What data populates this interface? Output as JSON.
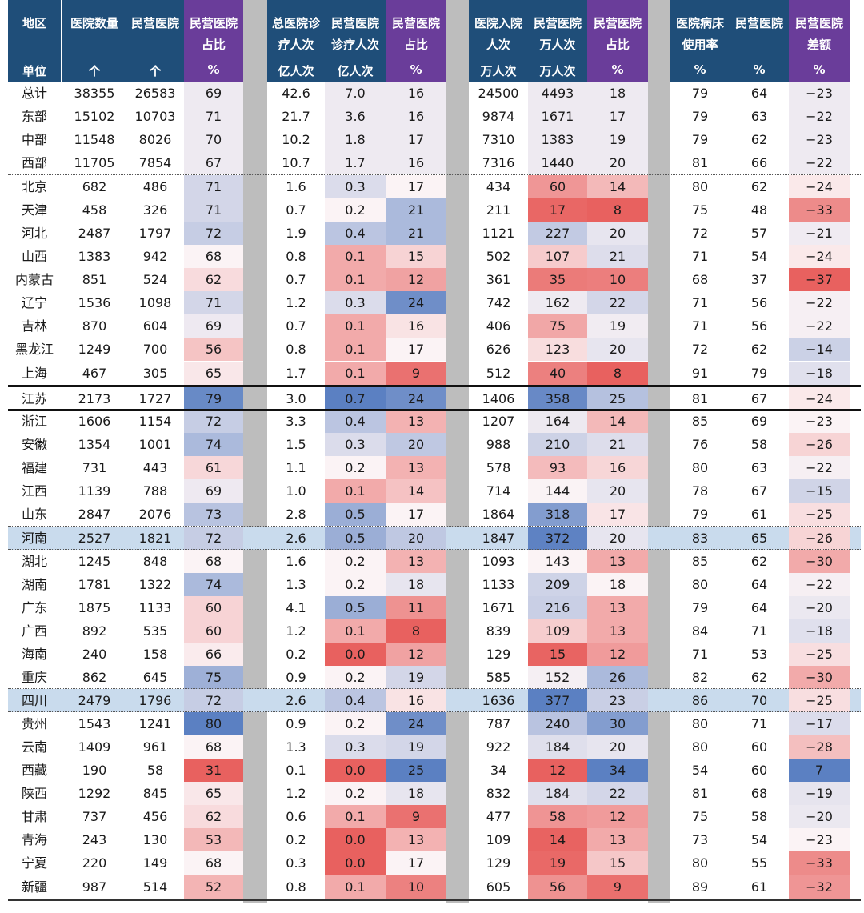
{
  "header": {
    "columns": [
      {
        "l1": "地区",
        "l2": "",
        "unit": "单位"
      },
      {
        "l1": "医院数量",
        "l2": "",
        "unit": "个"
      },
      {
        "l1": "民营医院",
        "l2": "",
        "unit": "个"
      },
      {
        "l1": "民营医院",
        "l2": "占比",
        "unit": "%"
      },
      {
        "l1": "总医院诊",
        "l2": "疗人次",
        "unit": "亿人次"
      },
      {
        "l1": "民营医院",
        "l2": "诊疗人次",
        "unit": "亿人次"
      },
      {
        "l1": "民营医院",
        "l2": "占比",
        "unit": "%"
      },
      {
        "l1": "医院入院",
        "l2": "人次",
        "unit": "万人次"
      },
      {
        "l1": "民营医院",
        "l2": "万人次",
        "unit": "万人次"
      },
      {
        "l1": "民营医院",
        "l2": "占比",
        "unit": "%"
      },
      {
        "l1": "医院病床",
        "l2": "使用率",
        "unit": "%"
      },
      {
        "l1": "民营医院",
        "l2": "",
        "unit": "%"
      },
      {
        "l1": "民营医院",
        "l2": "差额",
        "unit": "%"
      }
    ]
  },
  "rows": [
    {
      "region": "总计",
      "cells": [
        "38355",
        "26583",
        "69",
        "42.6",
        "7.0",
        "16",
        "24500",
        "4493",
        "18",
        "79",
        "64",
        "−23"
      ]
    },
    {
      "region": "东部",
      "cells": [
        "15102",
        "10703",
        "71",
        "21.7",
        "3.6",
        "16",
        "9874",
        "1671",
        "17",
        "79",
        "63",
        "−22"
      ]
    },
    {
      "region": "中部",
      "cells": [
        "11548",
        "8026",
        "70",
        "10.2",
        "1.8",
        "17",
        "7310",
        "1383",
        "19",
        "79",
        "62",
        "−23"
      ]
    },
    {
      "region": "西部",
      "cells": [
        "11705",
        "7854",
        "67",
        "10.7",
        "1.7",
        "16",
        "7316",
        "1440",
        "20",
        "81",
        "66",
        "−22"
      ]
    },
    {
      "region": "北京",
      "cells": [
        "682",
        "486",
        "71",
        "1.6",
        "0.3",
        "17",
        "434",
        "60",
        "14",
        "80",
        "62",
        "−24"
      ]
    },
    {
      "region": "天津",
      "cells": [
        "458",
        "326",
        "71",
        "0.7",
        "0.2",
        "21",
        "211",
        "17",
        "8",
        "75",
        "48",
        "−33"
      ]
    },
    {
      "region": "河北",
      "cells": [
        "2487",
        "1797",
        "72",
        "1.9",
        "0.4",
        "21",
        "1121",
        "227",
        "20",
        "72",
        "57",
        "−21"
      ]
    },
    {
      "region": "山西",
      "cells": [
        "1383",
        "942",
        "68",
        "0.8",
        "0.1",
        "15",
        "502",
        "107",
        "21",
        "71",
        "54",
        "−24"
      ]
    },
    {
      "region": "内蒙古",
      "cells": [
        "851",
        "524",
        "62",
        "0.7",
        "0.1",
        "12",
        "361",
        "35",
        "10",
        "68",
        "37",
        "−37"
      ]
    },
    {
      "region": "辽宁",
      "cells": [
        "1536",
        "1098",
        "71",
        "1.2",
        "0.3",
        "24",
        "742",
        "162",
        "22",
        "71",
        "56",
        "−22"
      ]
    },
    {
      "region": "吉林",
      "cells": [
        "870",
        "604",
        "69",
        "0.7",
        "0.1",
        "16",
        "406",
        "75",
        "19",
        "71",
        "56",
        "−22"
      ]
    },
    {
      "region": "黑龙江",
      "cells": [
        "1249",
        "700",
        "56",
        "0.8",
        "0.1",
        "17",
        "626",
        "123",
        "20",
        "72",
        "62",
        "−14"
      ]
    },
    {
      "region": "上海",
      "cells": [
        "467",
        "305",
        "65",
        "1.7",
        "0.1",
        "9",
        "512",
        "40",
        "8",
        "91",
        "79",
        "−18"
      ]
    },
    {
      "region": "江苏",
      "cells": [
        "2173",
        "1727",
        "79",
        "3.0",
        "0.7",
        "24",
        "1406",
        "358",
        "25",
        "81",
        "67",
        "−24"
      ]
    },
    {
      "region": "浙江",
      "cells": [
        "1606",
        "1154",
        "72",
        "3.3",
        "0.4",
        "13",
        "1207",
        "164",
        "14",
        "85",
        "69",
        "−23"
      ]
    },
    {
      "region": "安徽",
      "cells": [
        "1354",
        "1001",
        "74",
        "1.5",
        "0.3",
        "20",
        "988",
        "210",
        "21",
        "76",
        "58",
        "−26"
      ]
    },
    {
      "region": "福建",
      "cells": [
        "731",
        "443",
        "61",
        "1.1",
        "0.2",
        "13",
        "578",
        "93",
        "16",
        "80",
        "63",
        "−22"
      ]
    },
    {
      "region": "江西",
      "cells": [
        "1139",
        "788",
        "69",
        "1.0",
        "0.1",
        "14",
        "714",
        "144",
        "20",
        "78",
        "67",
        "−15"
      ]
    },
    {
      "region": "山东",
      "cells": [
        "2847",
        "2076",
        "73",
        "2.8",
        "0.5",
        "17",
        "1864",
        "318",
        "17",
        "79",
        "61",
        "−25"
      ]
    },
    {
      "region": "河南",
      "cells": [
        "2527",
        "1821",
        "72",
        "2.6",
        "0.5",
        "20",
        "1847",
        "372",
        "20",
        "83",
        "65",
        "−26"
      ]
    },
    {
      "region": "湖北",
      "cells": [
        "1245",
        "848",
        "68",
        "1.6",
        "0.2",
        "13",
        "1093",
        "143",
        "13",
        "85",
        "62",
        "−30"
      ]
    },
    {
      "region": "湖南",
      "cells": [
        "1781",
        "1322",
        "74",
        "1.3",
        "0.2",
        "18",
        "1133",
        "209",
        "18",
        "80",
        "64",
        "−22"
      ]
    },
    {
      "region": "广东",
      "cells": [
        "1875",
        "1133",
        "60",
        "4.1",
        "0.5",
        "11",
        "1671",
        "216",
        "13",
        "79",
        "64",
        "−20"
      ]
    },
    {
      "region": "广西",
      "cells": [
        "892",
        "535",
        "60",
        "1.2",
        "0.1",
        "8",
        "839",
        "109",
        "13",
        "84",
        "71",
        "−18"
      ]
    },
    {
      "region": "海南",
      "cells": [
        "240",
        "158",
        "66",
        "0.2",
        "0.0",
        "12",
        "129",
        "15",
        "12",
        "71",
        "53",
        "−25"
      ]
    },
    {
      "region": "重庆",
      "cells": [
        "862",
        "645",
        "75",
        "0.9",
        "0.2",
        "19",
        "585",
        "152",
        "26",
        "82",
        "62",
        "−30"
      ]
    },
    {
      "region": "四川",
      "cells": [
        "2479",
        "1796",
        "72",
        "2.6",
        "0.4",
        "16",
        "1636",
        "377",
        "23",
        "86",
        "70",
        "−25"
      ]
    },
    {
      "region": "贵州",
      "cells": [
        "1543",
        "1241",
        "80",
        "0.9",
        "0.2",
        "24",
        "787",
        "240",
        "30",
        "80",
        "71",
        "−17"
      ]
    },
    {
      "region": "云南",
      "cells": [
        "1409",
        "961",
        "68",
        "1.3",
        "0.3",
        "19",
        "922",
        "184",
        "20",
        "80",
        "60",
        "−28"
      ]
    },
    {
      "region": "西藏",
      "cells": [
        "190",
        "58",
        "31",
        "0.1",
        "0.0",
        "25",
        "34",
        "12",
        "34",
        "54",
        "60",
        "7"
      ]
    },
    {
      "region": "陕西",
      "cells": [
        "1292",
        "845",
        "65",
        "1.2",
        "0.2",
        "18",
        "832",
        "184",
        "22",
        "81",
        "68",
        "−19"
      ]
    },
    {
      "region": "甘肃",
      "cells": [
        "737",
        "456",
        "62",
        "0.6",
        "0.1",
        "9",
        "477",
        "58",
        "12",
        "75",
        "58",
        "−20"
      ]
    },
    {
      "region": "青海",
      "cells": [
        "243",
        "130",
        "53",
        "0.2",
        "0.0",
        "13",
        "109",
        "14",
        "13",
        "73",
        "54",
        "−23"
      ]
    },
    {
      "region": "宁夏",
      "cells": [
        "220",
        "149",
        "68",
        "0.3",
        "0.0",
        "17",
        "129",
        "19",
        "15",
        "80",
        "55",
        "−33"
      ]
    },
    {
      "region": "新疆",
      "cells": [
        "987",
        "514",
        "52",
        "0.8",
        "0.1",
        "10",
        "605",
        "56",
        "9",
        "89",
        "61",
        "−32"
      ]
    }
  ],
  "colors": {
    "header_blue": "#1f4e79",
    "header_purple": "#6a3d9a",
    "gap_gray": "#bdbdbd",
    "highlight_row": "#c9dbed",
    "scale_red": "#e8615f",
    "scale_white": "#fbf3f5",
    "scale_blue": "#5b80c2"
  }
}
